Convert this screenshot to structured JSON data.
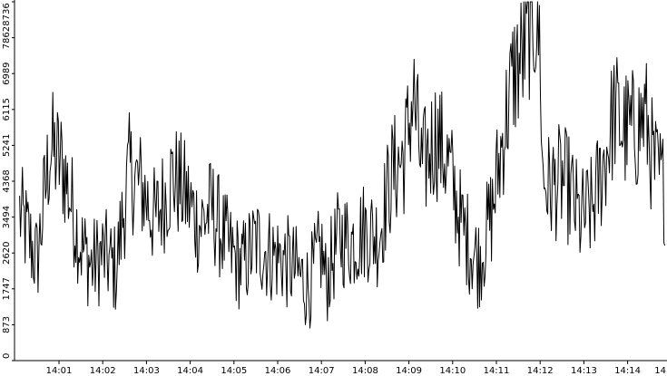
{
  "chart_data": {
    "type": "line",
    "title": "",
    "xlabel": "",
    "ylabel": "",
    "x_ticks": [
      "14:01",
      "14:02",
      "14:03",
      "14:04",
      "14:05",
      "14:06",
      "14:07",
      "14:08",
      "14:09",
      "14:10",
      "14:11",
      "14:12",
      "14:13",
      "14:14",
      "14"
    ],
    "y_ticks": [
      "0",
      "873",
      "1747",
      "2620",
      "3494",
      "4368",
      "5241",
      "6115",
      "6989",
      "7862",
      "8736"
    ],
    "ylim": [
      0,
      8736
    ],
    "xlim_minutes": [
      0.1,
      14.85
    ],
    "grid": false,
    "line_color": "#000000",
    "series": [
      {
        "x_minutes": [
          0.1,
          0.5,
          0.8,
          1.1,
          1.5,
          1.75,
          2.0,
          2.3,
          2.6,
          2.9,
          3.2,
          3.6,
          3.9,
          4.2,
          4.5,
          4.8,
          5.0,
          5.2,
          5.5,
          5.8,
          6.1,
          6.4,
          6.7,
          7.0,
          7.1,
          7.4,
          7.7,
          8.0,
          8.3,
          8.6,
          8.9,
          9.1,
          9.3,
          9.6,
          9.9,
          10.2,
          10.4,
          10.6,
          10.9,
          11.2,
          11.4,
          11.6,
          11.8,
          11.9,
          12.0,
          12.05,
          12.2,
          12.5,
          12.7,
          12.9,
          13.2,
          13.5,
          13.7,
          13.9,
          14.2,
          14.4,
          14.6,
          14.85
        ],
        "values": [
          3600,
          2400,
          5200,
          4700,
          2800,
          2300,
          2600,
          2200,
          4600,
          4200,
          3400,
          4500,
          4000,
          3300,
          3700,
          2900,
          2500,
          2300,
          2900,
          2600,
          2500,
          2200,
          1800,
          2700,
          1900,
          3000,
          2900,
          3200,
          3000,
          4500,
          5000,
          6500,
          4600,
          5500,
          4800,
          3300,
          2800,
          2400,
          3600,
          5800,
          7000,
          7400,
          8400,
          8300,
          7800,
          4500,
          4200,
          4400,
          4100,
          3400,
          3700,
          5000,
          6100,
          5600,
          5600,
          6000,
          4700,
          4200
        ]
      }
    ]
  }
}
